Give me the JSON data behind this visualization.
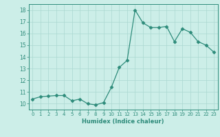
{
  "x": [
    0,
    1,
    2,
    3,
    4,
    5,
    6,
    7,
    8,
    9,
    10,
    11,
    12,
    13,
    14,
    15,
    16,
    17,
    18,
    19,
    20,
    21,
    22,
    23
  ],
  "y": [
    10.4,
    10.6,
    10.65,
    10.7,
    10.7,
    10.25,
    10.4,
    10.0,
    9.9,
    10.1,
    11.4,
    13.1,
    13.7,
    18.0,
    16.9,
    16.5,
    16.5,
    16.6,
    15.3,
    16.4,
    16.1,
    15.3,
    15.0,
    14.4
  ],
  "line_color": "#2d8b7a",
  "marker": "D",
  "marker_size": 2.5,
  "bg_color": "#cceee8",
  "grid_color": "#aad8d0",
  "xlabel": "Humidex (Indice chaleur)",
  "ylim": [
    9.5,
    18.5
  ],
  "xlim": [
    -0.5,
    23.5
  ],
  "yticks": [
    10,
    11,
    12,
    13,
    14,
    15,
    16,
    17,
    18
  ],
  "xticks": [
    0,
    1,
    2,
    3,
    4,
    5,
    6,
    7,
    8,
    9,
    10,
    11,
    12,
    13,
    14,
    15,
    16,
    17,
    18,
    19,
    20,
    21,
    22,
    23
  ]
}
